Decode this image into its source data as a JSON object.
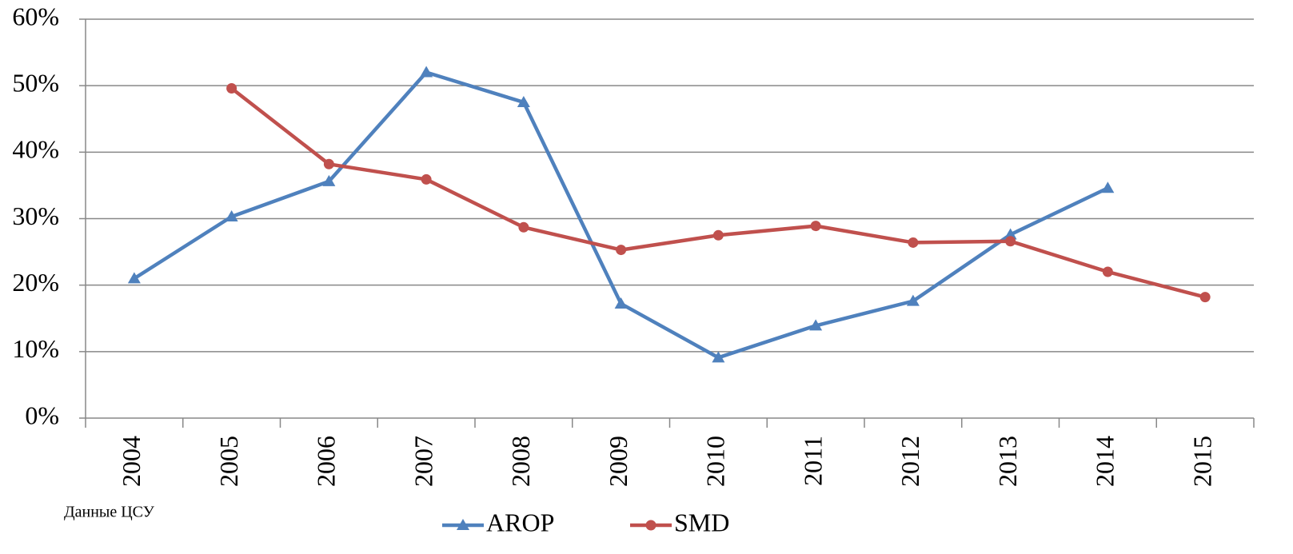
{
  "chart_data": {
    "type": "line",
    "categories": [
      "2004",
      "2005",
      "2006",
      "2007",
      "2008",
      "2009",
      "2010",
      "2011",
      "2012",
      "2013",
      "2014",
      "2015"
    ],
    "series": [
      {
        "name": "AROP",
        "color": "#4f81bd",
        "marker": "triangle",
        "values": [
          21.0,
          30.3,
          35.6,
          52.0,
          47.5,
          17.2,
          9.1,
          13.9,
          17.6,
          27.6,
          34.6,
          null
        ]
      },
      {
        "name": "SMD",
        "color": "#c0504d",
        "marker": "circle",
        "values": [
          null,
          49.6,
          38.2,
          35.9,
          28.7,
          25.3,
          27.5,
          28.9,
          26.4,
          26.6,
          22.0,
          18.2
        ]
      }
    ],
    "ylim": [
      0,
      60
    ],
    "yticks": [
      {
        "value": 0,
        "label": "0%"
      },
      {
        "value": 10,
        "label": "10%"
      },
      {
        "value": 20,
        "label": "20%"
      },
      {
        "value": 30,
        "label": "30%"
      },
      {
        "value": 40,
        "label": "40%"
      },
      {
        "value": 50,
        "label": "50%"
      },
      {
        "value": 60,
        "label": "60%"
      }
    ],
    "grid": true,
    "legend": "bottom",
    "annotations": [
      "Данные ЦСУ"
    ]
  }
}
